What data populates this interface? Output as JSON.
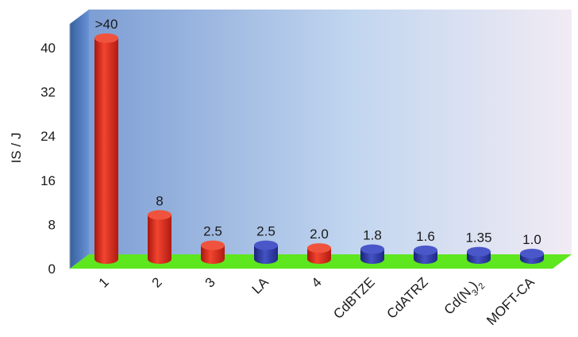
{
  "chart_data": {
    "type": "bar",
    "ylabel": "IS / J",
    "xlabel": "",
    "ylim": [
      0,
      44
    ],
    "yticks": [
      "0",
      "8",
      "16",
      "24",
      "32",
      "40"
    ],
    "ytick_values": [
      0,
      8,
      16,
      24,
      32,
      40
    ],
    "categories": [
      "1",
      "2",
      "3",
      "LA",
      "4",
      "CdBTZE",
      "CdATRZ",
      "Cd(N3)2",
      "MOFT-CA"
    ],
    "values": [
      40,
      8,
      2.5,
      2.5,
      2.0,
      1.8,
      1.6,
      1.35,
      1.0
    ],
    "data_labels": [
      ">40",
      "8",
      "2.5",
      "2.5",
      "2.0",
      "1.8",
      "1.6",
      "1.35",
      "1.0"
    ],
    "bar_colors": [
      "red",
      "red",
      "red",
      "blue",
      "red",
      "blue",
      "blue",
      "blue",
      "blue"
    ],
    "colors": {
      "red": "#e2281e",
      "blue": "#2e3aa6",
      "floor": "#5ee61e",
      "back_wall_left": "#7d9ed4",
      "back_wall_right": "#f1ebf4",
      "side_wall": "#3f6fc4"
    },
    "grid": false,
    "legend": "none"
  }
}
